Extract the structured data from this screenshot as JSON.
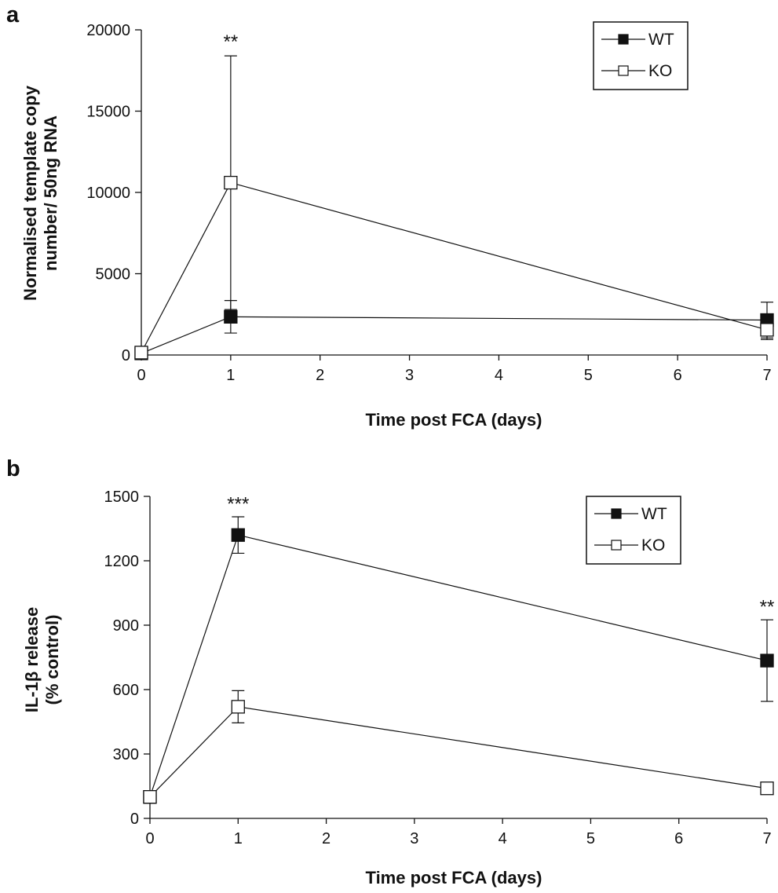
{
  "chart_data": [
    {
      "type": "line",
      "panel_label": "a",
      "xlabel": "Time post FCA (days)",
      "ylabel": [
        "Normalised template copy",
        "number/ 50ng RNA"
      ],
      "xlim": [
        0,
        7
      ],
      "ylim": [
        0,
        20000
      ],
      "x_ticks": [
        "0",
        "1",
        "2",
        "3",
        "4",
        "5",
        "6",
        "7"
      ],
      "y_ticks": [
        "0",
        "5000",
        "10000",
        "15000",
        "20000"
      ],
      "legend_position": "top-right",
      "grid": false,
      "x": [
        0,
        1,
        7
      ],
      "series": [
        {
          "name": "WT",
          "marker": "filled-square",
          "color": "#111111",
          "values": [
            100,
            2350,
            2150
          ],
          "error": [
            0,
            1000,
            1100
          ]
        },
        {
          "name": "KO",
          "marker": "open-square",
          "color": "#111111",
          "values": [
            150,
            10600,
            1550
          ],
          "error": [
            0,
            7800,
            600
          ]
        }
      ],
      "annotations": [
        {
          "x": 1,
          "y": 18400,
          "text": "**"
        }
      ]
    },
    {
      "type": "line",
      "panel_label": "b",
      "xlabel": "Time post FCA (days)",
      "ylabel": [
        "IL-1β release",
        "(% control)"
      ],
      "xlim": [
        0,
        7
      ],
      "ylim": [
        0,
        1500
      ],
      "x_ticks": [
        "0",
        "1",
        "2",
        "3",
        "4",
        "5",
        "6",
        "7"
      ],
      "y_ticks": [
        "0",
        "300",
        "600",
        "900",
        "1200",
        "1500"
      ],
      "legend_position": "top-right",
      "grid": false,
      "x": [
        0,
        1,
        7
      ],
      "series": [
        {
          "name": "WT",
          "marker": "filled-square",
          "color": "#111111",
          "values": [
            100,
            1320,
            735
          ],
          "error": [
            25,
            85,
            190
          ]
        },
        {
          "name": "KO",
          "marker": "open-square",
          "color": "#111111",
          "values": [
            100,
            520,
            140
          ],
          "error": [
            25,
            75,
            12
          ]
        }
      ],
      "annotations": [
        {
          "x": 1,
          "y": 1400,
          "text": "***"
        },
        {
          "x": 7,
          "y": 920,
          "text": "**"
        }
      ]
    }
  ]
}
